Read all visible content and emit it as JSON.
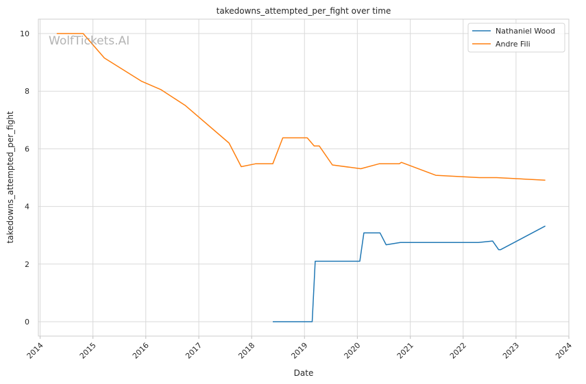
{
  "chart_data": {
    "type": "line",
    "title": "takedowns_attempted_per_fight over time",
    "xlabel": "Date",
    "ylabel": "takedowns_attempted_per_fight",
    "watermark": "WolfTickets.AI",
    "grid": true,
    "legend_position": "top-right",
    "x_ticks": [
      "2014",
      "2015",
      "2016",
      "2017",
      "2018",
      "2019",
      "2020",
      "2021",
      "2022",
      "2023",
      "2024"
    ],
    "y_ticks": [
      "0",
      "2",
      "4",
      "6",
      "8",
      "10"
    ],
    "xlim": [
      "2013-12-20",
      "2024-01-01"
    ],
    "ylim": [
      -0.5,
      10.5
    ],
    "series": [
      {
        "name": "Nathaniel Wood",
        "color": "#1f77b4",
        "points": [
          [
            "2018-05-27",
            0.0
          ],
          [
            "2019-02-23",
            0.0
          ],
          [
            "2019-03-16",
            2.1
          ],
          [
            "2020-01-18",
            2.1
          ],
          [
            "2020-02-15",
            3.08
          ],
          [
            "2020-06-06",
            3.08
          ],
          [
            "2020-07-18",
            2.67
          ],
          [
            "2020-10-24",
            2.75
          ],
          [
            "2022-04-16",
            2.75
          ],
          [
            "2022-07-23",
            2.8
          ],
          [
            "2022-09-03",
            2.5
          ],
          [
            "2022-09-17",
            2.5
          ],
          [
            "2023-07-22",
            3.32
          ]
        ]
      },
      {
        "name": "Andre Fili",
        "color": "#ff7f0e",
        "points": [
          [
            "2014-04-26",
            10.0
          ],
          [
            "2014-10-25",
            10.0
          ],
          [
            "2015-03-21",
            9.15
          ],
          [
            "2015-12-01",
            8.35
          ],
          [
            "2016-04-16",
            8.05
          ],
          [
            "2016-10-01",
            7.5
          ],
          [
            "2017-07-29",
            6.2
          ],
          [
            "2017-10-21",
            5.38
          ],
          [
            "2018-01-27",
            5.48
          ],
          [
            "2018-05-27",
            5.48
          ],
          [
            "2018-08-04",
            6.38
          ],
          [
            "2019-01-20",
            6.38
          ],
          [
            "2019-03-09",
            6.1
          ],
          [
            "2019-04-13",
            6.1
          ],
          [
            "2019-07-13",
            5.44
          ],
          [
            "2020-01-25",
            5.31
          ],
          [
            "2020-05-30",
            5.48
          ],
          [
            "2020-10-17",
            5.48
          ],
          [
            "2020-10-31",
            5.53
          ],
          [
            "2021-06-26",
            5.08
          ],
          [
            "2022-04-23",
            5.0
          ],
          [
            "2022-08-20",
            5.0
          ],
          [
            "2023-07-22",
            4.91
          ]
        ]
      }
    ]
  }
}
